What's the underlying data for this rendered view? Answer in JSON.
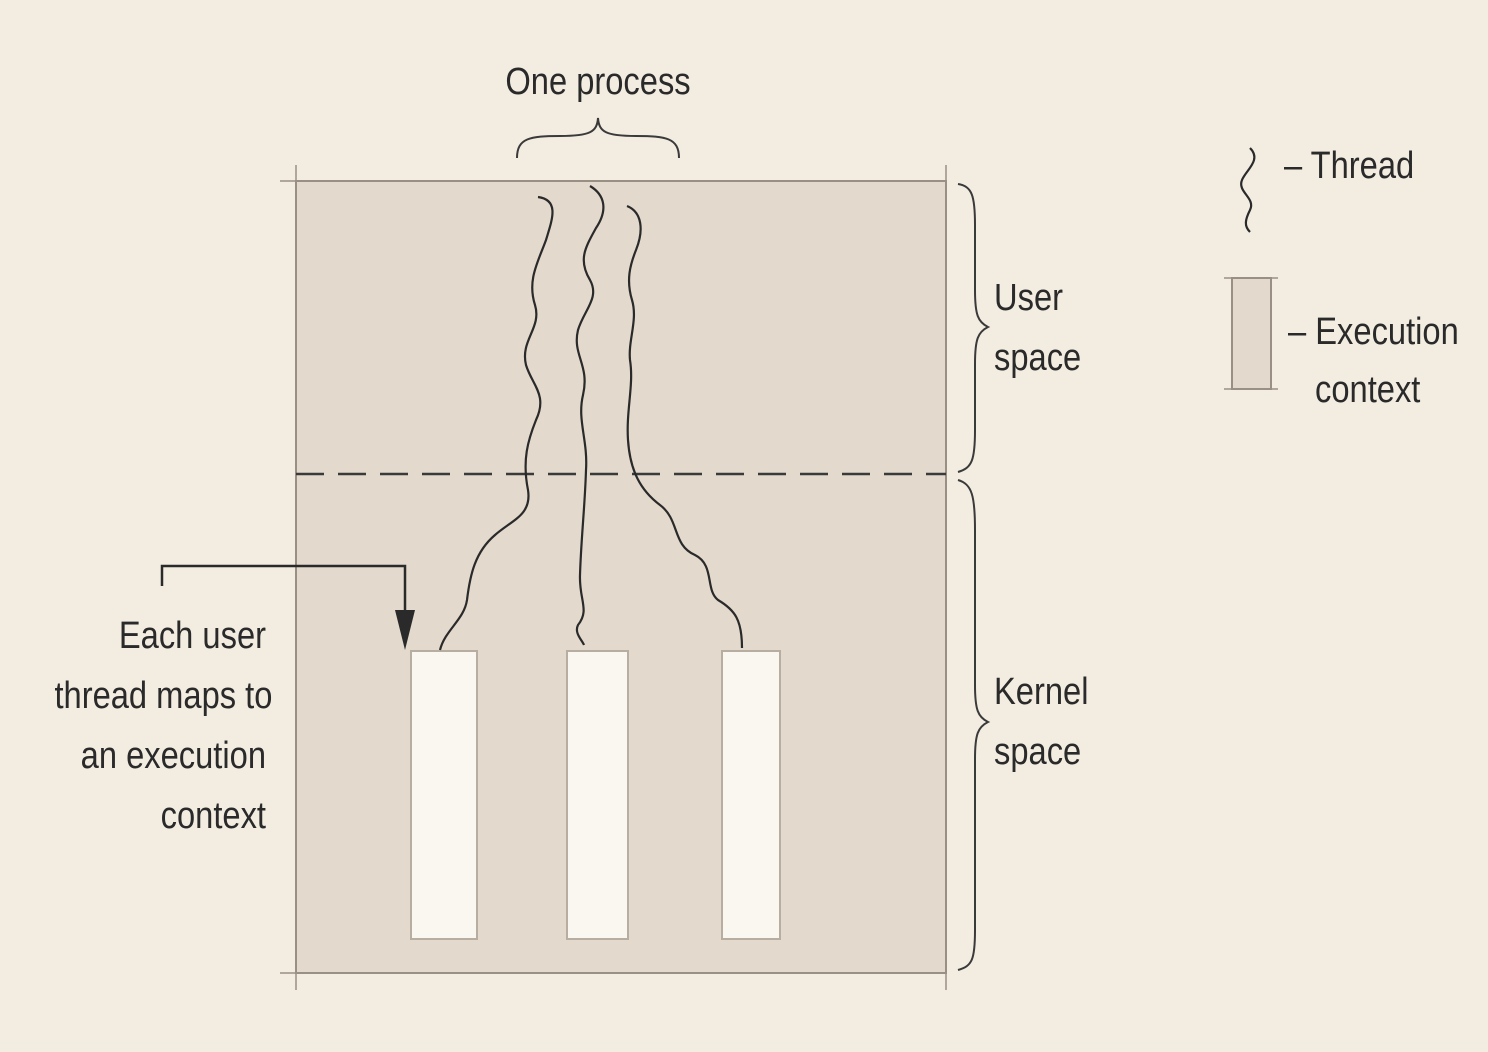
{
  "diagram": {
    "process_label": "One process",
    "user_space_label": [
      "User",
      "space"
    ],
    "kernel_space_label": [
      "Kernel",
      "space"
    ],
    "annotation": [
      "Each user",
      "thread maps to",
      "an execution",
      "context"
    ],
    "legend": {
      "thread_label": "– Thread",
      "execution_context_label": [
        "– Execution",
        "context"
      ]
    },
    "colors": {
      "background": "#f3ece1",
      "process_box": "#e3d9cd",
      "execution_context_fill": "#faf6f0",
      "line": "#3a3a3a"
    }
  }
}
